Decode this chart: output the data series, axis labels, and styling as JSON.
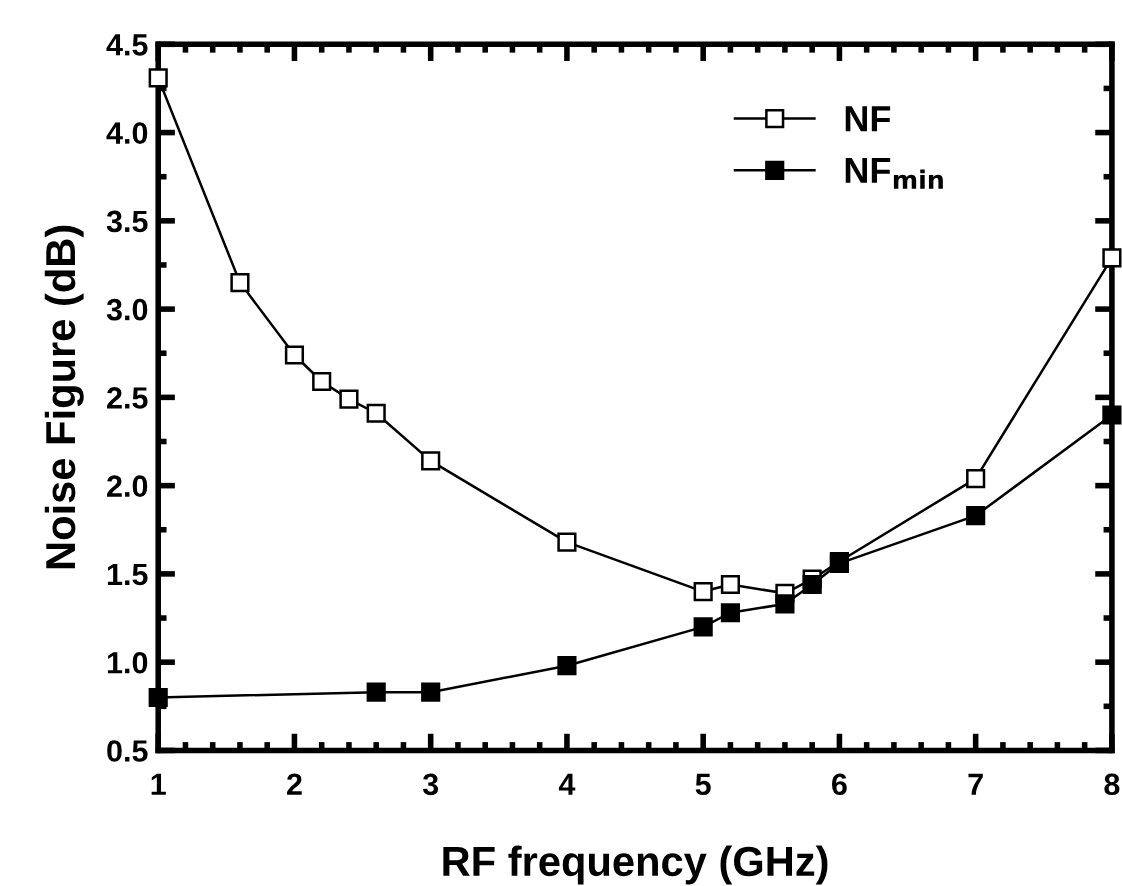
{
  "chart_data": {
    "type": "line",
    "xlabel": "RF frequency (GHz)",
    "ylabel": "Noise Figure (dB)",
    "xlim": [
      1,
      8
    ],
    "xticks": [
      1,
      2,
      3,
      4,
      5,
      6,
      7,
      8
    ],
    "ylim": [
      0.5,
      4.5
    ],
    "yticks": [
      0.5,
      {
        "value": 1,
        "label": "1.0"
      },
      1.5,
      {
        "value": 2,
        "label": "2.0"
      },
      2.5,
      {
        "value": 3,
        "label": "3.0"
      },
      3.5,
      {
        "value": 4,
        "label": "4.0"
      },
      4.5
    ],
    "grid": false,
    "legend": "top right",
    "marker": "square",
    "line_style": "solid",
    "series": [
      {
        "name": "NF",
        "color": "#000000",
        "x": [
          1,
          1.6,
          2,
          2.2,
          2.4,
          2.6,
          3,
          4,
          5,
          5.2,
          5.6,
          5.8,
          6,
          7,
          8
        ],
        "values": [
          4.31,
          3.15,
          2.74,
          2.59,
          2.49,
          2.41,
          2.14,
          1.68,
          1.4,
          1.44,
          1.39,
          1.47,
          1.57,
          2.04,
          3.29
        ]
      },
      {
        "name": "NF$_{min}$",
        "color": "#000000",
        "x": [
          1,
          2.6,
          3,
          4,
          5,
          5.2,
          5.6,
          5.8,
          6,
          7,
          8
        ],
        "values": [
          0.8,
          0.83,
          0.83,
          0.98,
          1.2,
          1.28,
          1.33,
          1.44,
          1.56,
          1.83,
          2.4
        ]
      }
    ]
  }
}
